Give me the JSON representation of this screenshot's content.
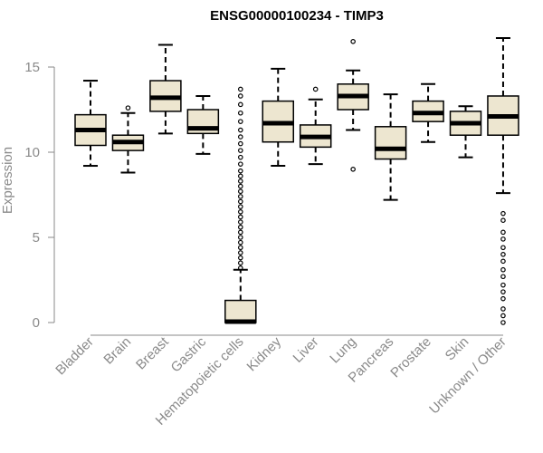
{
  "chart_data": {
    "type": "boxplot",
    "title": "ENSG00000100234 - TIMP3",
    "xlabel": "",
    "ylabel": "Expression",
    "ylim": [
      0,
      17
    ],
    "yticks": [
      0,
      5,
      10,
      15
    ],
    "box_fill": "#ede6d0",
    "categories": [
      "Bladder",
      "Brain",
      "Breast",
      "Gastric",
      "Hematopoietic cells",
      "Kidney",
      "Liver",
      "Lung",
      "Pancreas",
      "Prostate",
      "Skin",
      "Unknown / Other"
    ],
    "boxes": [
      {
        "name": "Bladder",
        "whisker_low": 9.2,
        "q1": 10.4,
        "median": 11.3,
        "q3": 12.2,
        "whisker_high": 14.2,
        "outliers": []
      },
      {
        "name": "Brain",
        "whisker_low": 8.8,
        "q1": 10.1,
        "median": 10.6,
        "q3": 11.0,
        "whisker_high": 12.3,
        "outliers": [
          12.6
        ]
      },
      {
        "name": "Breast",
        "whisker_low": 11.1,
        "q1": 12.4,
        "median": 13.2,
        "q3": 14.2,
        "whisker_high": 16.3,
        "outliers": []
      },
      {
        "name": "Gastric",
        "whisker_low": 9.9,
        "q1": 11.1,
        "median": 11.4,
        "q3": 12.5,
        "whisker_high": 13.3,
        "outliers": []
      },
      {
        "name": "Hematopoietic cells",
        "whisker_low": 0.0,
        "q1": 0.0,
        "median": 0.05,
        "q3": 1.3,
        "whisker_high": 3.1,
        "outliers": [
          3.2,
          3.5,
          3.8,
          4.1,
          4.4,
          4.7,
          5.0,
          5.3,
          5.6,
          5.9,
          6.2,
          6.5,
          6.8,
          7.1,
          7.4,
          7.7,
          8.0,
          8.3,
          8.6,
          8.9,
          9.3,
          9.7,
          10.1,
          10.5,
          10.9,
          11.3,
          11.8,
          12.3,
          12.8,
          13.3,
          13.7
        ]
      },
      {
        "name": "Kidney",
        "whisker_low": 9.2,
        "q1": 10.6,
        "median": 11.7,
        "q3": 13.0,
        "whisker_high": 14.9,
        "outliers": []
      },
      {
        "name": "Liver",
        "whisker_low": 9.3,
        "q1": 10.3,
        "median": 10.9,
        "q3": 11.6,
        "whisker_high": 13.1,
        "outliers": [
          13.7
        ]
      },
      {
        "name": "Lung",
        "whisker_low": 11.3,
        "q1": 12.5,
        "median": 13.3,
        "q3": 14.0,
        "whisker_high": 14.8,
        "outliers": [
          9.0,
          16.5
        ]
      },
      {
        "name": "Pancreas",
        "whisker_low": 7.2,
        "q1": 9.6,
        "median": 10.2,
        "q3": 11.5,
        "whisker_high": 13.4,
        "outliers": []
      },
      {
        "name": "Prostate",
        "whisker_low": 10.6,
        "q1": 11.8,
        "median": 12.3,
        "q3": 13.0,
        "whisker_high": 14.0,
        "outliers": []
      },
      {
        "name": "Skin",
        "whisker_low": 9.7,
        "q1": 11.0,
        "median": 11.7,
        "q3": 12.4,
        "whisker_high": 12.7,
        "outliers": []
      },
      {
        "name": "Unknown / Other",
        "whisker_low": 7.6,
        "q1": 11.0,
        "median": 12.1,
        "q3": 13.3,
        "whisker_high": 16.7,
        "outliers": [
          0.0,
          0.4,
          0.8,
          1.4,
          1.8,
          2.2,
          2.7,
          3.1,
          3.6,
          4.0,
          4.4,
          4.9,
          5.3,
          6.0,
          6.4
        ]
      }
    ]
  }
}
